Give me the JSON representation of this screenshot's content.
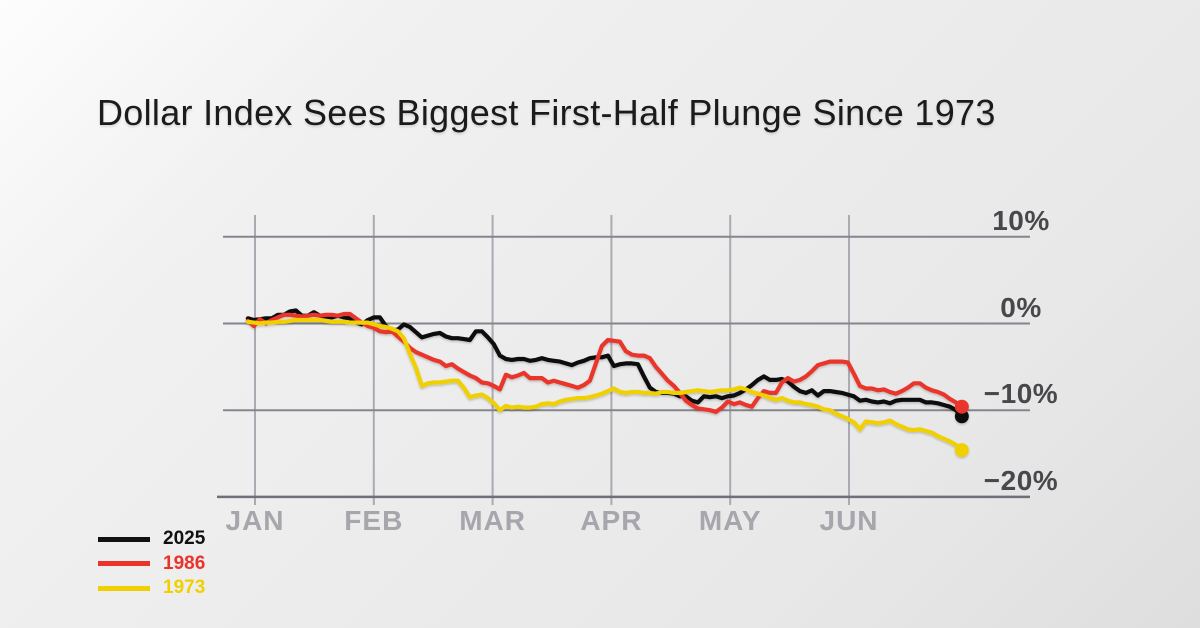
{
  "title": "Dollar Index Sees Biggest First-Half Plunge Since 1973",
  "legend": [
    {
      "label": "2025",
      "color": "#111111"
    },
    {
      "label": "1986",
      "color": "#ea342b"
    },
    {
      "label": "1973",
      "color": "#f0d000"
    }
  ],
  "chart_data": {
    "type": "line",
    "title": "Dollar Index Sees Biggest First-Half Plunge Since 1973",
    "x_unit": "months since Jan 1 (0 = JAN gridline, 5 = JUN gridline)",
    "x_tick_labels": [
      "JAN",
      "FEB",
      "MAR",
      "APR",
      "MAY",
      "JUN"
    ],
    "x_tick_positions": [
      0,
      1,
      2,
      3,
      4,
      5
    ],
    "y_tick_labels": [
      "10%",
      "0%",
      "−10%",
      "−20%"
    ],
    "y_tick_values": [
      10,
      0,
      -10,
      -20
    ],
    "ylim": [
      -22,
      12
    ],
    "grid": true,
    "legend_position": "bottom-left",
    "x_start": -0.06,
    "x_end": 5.95,
    "series": [
      {
        "name": "2025",
        "color": "#111111",
        "end_dot": true,
        "values": [
          0.6,
          0.4,
          0.5,
          0.6,
          0.6,
          1.0,
          1.0,
          1.4,
          1.5,
          0.9,
          0.9,
          1.3,
          0.9,
          0.8,
          0.7,
          0.9,
          0.7,
          0.6,
          0.1,
          -0.1,
          0.4,
          0.7,
          0.7,
          -0.3,
          -0.8,
          -0.7,
          -0.1,
          -0.4,
          -1.0,
          -1.6,
          -1.4,
          -1.2,
          -1.1,
          -1.5,
          -1.7,
          -1.7,
          -1.8,
          -1.9,
          -0.9,
          -0.9,
          -1.6,
          -2.4,
          -3.7,
          -4.1,
          -4.2,
          -4.1,
          -4.1,
          -4.3,
          -4.2,
          -4.0,
          -4.2,
          -4.3,
          -4.4,
          -4.6,
          -4.8,
          -4.5,
          -4.3,
          -4.0,
          -3.9,
          -3.9,
          -3.7,
          -4.9,
          -4.7,
          -4.6,
          -4.6,
          -4.7,
          -6.1,
          -7.4,
          -7.9,
          -8.0,
          -8.0,
          -8.1,
          -8.4,
          -8.4,
          -8.9,
          -9.1,
          -8.4,
          -8.5,
          -8.4,
          -8.6,
          -8.4,
          -8.3,
          -8.0,
          -7.6,
          -7.1,
          -6.5,
          -6.1,
          -6.5,
          -6.5,
          -6.4,
          -6.7,
          -7.3,
          -7.8,
          -8.0,
          -7.7,
          -8.3,
          -7.8,
          -7.8,
          -7.9,
          -8.0,
          -8.2,
          -8.4,
          -8.9,
          -8.8,
          -9.0,
          -9.1,
          -9.0,
          -9.2,
          -8.9,
          -8.8,
          -8.8,
          -8.8,
          -8.8,
          -9.1,
          -9.1,
          -9.2,
          -9.4,
          -9.6,
          -10.0,
          -10.7
        ]
      },
      {
        "name": "1986",
        "color": "#ea342b",
        "end_dot": true,
        "values": [
          0.3,
          -0.3,
          0.5,
          0.0,
          0.4,
          0.7,
          1.0,
          1.0,
          0.9,
          0.8,
          0.9,
          1.0,
          0.9,
          1.0,
          1.0,
          0.9,
          1.1,
          1.1,
          0.6,
          0.1,
          -0.3,
          -0.5,
          -0.9,
          -1.0,
          -0.9,
          -1.5,
          -2.1,
          -2.8,
          -3.3,
          -3.6,
          -3.9,
          -4.2,
          -4.4,
          -4.9,
          -4.7,
          -5.2,
          -5.6,
          -6.0,
          -6.3,
          -6.8,
          -6.9,
          -7.2,
          -7.6,
          -5.9,
          -6.2,
          -6.0,
          -5.7,
          -6.3,
          -6.3,
          -6.3,
          -6.8,
          -6.6,
          -6.8,
          -7.0,
          -7.2,
          -7.4,
          -7.1,
          -6.6,
          -4.6,
          -2.6,
          -1.9,
          -2.0,
          -2.1,
          -3.2,
          -3.6,
          -3.7,
          -3.7,
          -4.0,
          -5.0,
          -5.8,
          -6.6,
          -7.2,
          -8.0,
          -8.9,
          -9.4,
          -9.8,
          -9.9,
          -10.0,
          -10.2,
          -9.7,
          -9.0,
          -9.3,
          -9.1,
          -9.4,
          -9.6,
          -8.6,
          -7.8,
          -8.0,
          -8.0,
          -6.8,
          -6.3,
          -6.7,
          -6.5,
          -6.1,
          -5.5,
          -4.8,
          -4.6,
          -4.4,
          -4.4,
          -4.4,
          -4.5,
          -5.8,
          -7.2,
          -7.5,
          -7.5,
          -7.7,
          -7.6,
          -7.9,
          -8.1,
          -7.8,
          -7.4,
          -6.9,
          -6.9,
          -7.4,
          -7.7,
          -7.9,
          -8.2,
          -8.7,
          -9.1,
          -9.6
        ]
      },
      {
        "name": "1973",
        "color": "#f0d000",
        "end_dot": true,
        "values": [
          0.2,
          0.1,
          0.0,
          0.1,
          0.1,
          0.2,
          0.2,
          0.3,
          0.4,
          0.4,
          0.4,
          0.4,
          0.4,
          0.3,
          0.2,
          0.2,
          0.2,
          0.1,
          0.1,
          0.1,
          0.1,
          -0.1,
          -0.3,
          -0.4,
          -0.6,
          -0.9,
          -1.7,
          -3.5,
          -5.1,
          -7.2,
          -6.9,
          -6.8,
          -6.8,
          -6.7,
          -6.6,
          -6.6,
          -7.4,
          -8.5,
          -8.3,
          -8.2,
          -8.6,
          -9.2,
          -10.0,
          -9.5,
          -9.7,
          -9.6,
          -9.7,
          -9.7,
          -9.6,
          -9.3,
          -9.2,
          -9.3,
          -9.0,
          -8.8,
          -8.7,
          -8.6,
          -8.6,
          -8.5,
          -8.3,
          -8.1,
          -7.8,
          -7.5,
          -7.9,
          -8.0,
          -7.9,
          -7.9,
          -8.0,
          -8.0,
          -8.1,
          -7.9,
          -7.9,
          -8.0,
          -8.0,
          -7.9,
          -7.8,
          -7.7,
          -7.8,
          -7.9,
          -7.8,
          -7.7,
          -7.7,
          -7.6,
          -7.4,
          -7.6,
          -7.9,
          -8.1,
          -8.3,
          -8.6,
          -8.8,
          -8.6,
          -8.9,
          -9.1,
          -9.1,
          -9.3,
          -9.4,
          -9.6,
          -9.9,
          -10.0,
          -10.4,
          -10.7,
          -11.0,
          -11.4,
          -12.2,
          -11.3,
          -11.4,
          -11.5,
          -11.4,
          -11.2,
          -11.6,
          -11.9,
          -12.2,
          -12.3,
          -12.2,
          -12.4,
          -12.6,
          -13.0,
          -13.3,
          -13.6,
          -14.0,
          -14.6
        ]
      }
    ]
  }
}
